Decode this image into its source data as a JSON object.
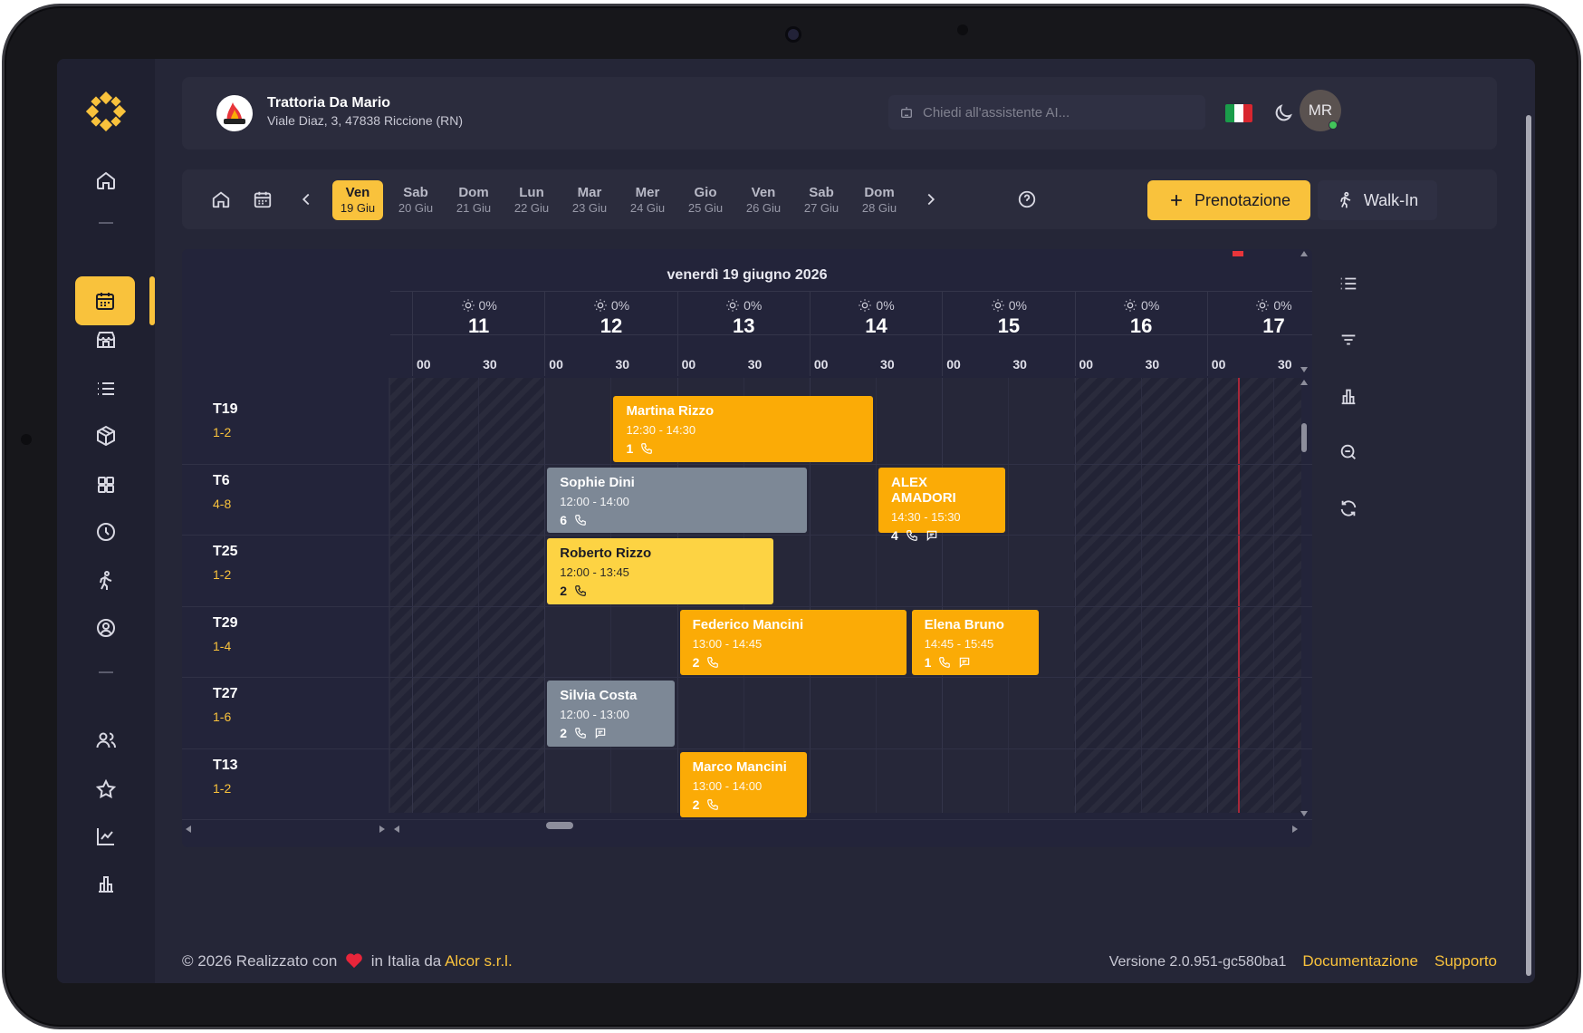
{
  "restaurant": {
    "name": "Trattoria Da Mario",
    "address": "Viale Diaz, 3, 47838 Riccione (RN)"
  },
  "header": {
    "ai_placeholder": "Chiedi all'assistente AI...",
    "avatar_initials": "MR",
    "flag_colors": [
      "#1a9c4a",
      "#ffffff",
      "#d8262f"
    ]
  },
  "days": [
    {
      "name": "Ven",
      "date": "19 Giu",
      "selected": true
    },
    {
      "name": "Sab",
      "date": "20 Giu"
    },
    {
      "name": "Dom",
      "date": "21 Giu"
    },
    {
      "name": "Lun",
      "date": "22 Giu"
    },
    {
      "name": "Mar",
      "date": "23 Giu"
    },
    {
      "name": "Mer",
      "date": "24 Giu"
    },
    {
      "name": "Gio",
      "date": "25 Giu"
    },
    {
      "name": "Ven",
      "date": "26 Giu"
    },
    {
      "name": "Sab",
      "date": "27 Giu"
    },
    {
      "name": "Dom",
      "date": "28 Giu"
    }
  ],
  "actions": {
    "new_booking": "Prenotazione",
    "walk_in": "Walk-In"
  },
  "grid": {
    "date_label": "venerdì 19 giugno 2026",
    "hours": [
      {
        "hour": "11",
        "weather": "0%"
      },
      {
        "hour": "12",
        "weather": "0%"
      },
      {
        "hour": "13",
        "weather": "0%"
      },
      {
        "hour": "14",
        "weather": "0%"
      },
      {
        "hour": "15",
        "weather": "0%"
      },
      {
        "hour": "16",
        "weather": "0%"
      },
      {
        "hour": "17",
        "weather": "0%"
      }
    ],
    "minute_labels": [
      "00",
      "30"
    ],
    "tables": [
      {
        "name": "T19",
        "capacity": "1-2"
      },
      {
        "name": "T6",
        "capacity": "4-8"
      },
      {
        "name": "T25",
        "capacity": "1-2"
      },
      {
        "name": "T29",
        "capacity": "1-4"
      },
      {
        "name": "T27",
        "capacity": "1-6"
      },
      {
        "name": "T13",
        "capacity": "1-2"
      }
    ],
    "bookings": [
      {
        "name": "Martina Rizzo",
        "time": "12:30 - 14:30",
        "people": "1",
        "row": 0,
        "start": 12.5,
        "end": 14.5,
        "color": "orange",
        "note": false
      },
      {
        "name": "Sophie Dini",
        "time": "12:00 - 14:00",
        "people": "6",
        "row": 1,
        "start": 12.0,
        "end": 14.0,
        "color": "grey",
        "note": false
      },
      {
        "name": "ALEX AMADORI",
        "time": "14:30 - 15:30",
        "people": "4",
        "row": 1,
        "start": 14.5,
        "end": 15.5,
        "color": "orange",
        "note": true
      },
      {
        "name": "Roberto Rizzo",
        "time": "12:00 - 13:45",
        "people": "2",
        "row": 2,
        "start": 12.0,
        "end": 13.75,
        "color": "yellow",
        "note": false
      },
      {
        "name": "Federico Mancini",
        "time": "13:00 - 14:45",
        "people": "2",
        "row": 3,
        "start": 13.0,
        "end": 14.75,
        "color": "orange",
        "note": false
      },
      {
        "name": "Elena Bruno",
        "time": "14:45 - 15:45",
        "people": "1",
        "row": 3,
        "start": 14.75,
        "end": 15.75,
        "color": "orange",
        "note": true
      },
      {
        "name": "Silvia Costa",
        "time": "12:00 - 13:00",
        "people": "2",
        "row": 4,
        "start": 12.0,
        "end": 13.0,
        "color": "grey",
        "note": true
      },
      {
        "name": "Marco Mancini",
        "time": "13:00 - 14:00",
        "people": "2",
        "row": 5,
        "start": 13.0,
        "end": 14.0,
        "color": "orange",
        "note": false
      }
    ]
  },
  "footer": {
    "copyright_pre": "© 2026 Realizzato con",
    "copyright_mid": "in Italia da",
    "company": "Alcor s.r.l.",
    "version": "Versione 2.0.951-gc580ba1",
    "docs": "Documentazione",
    "support": "Supporto"
  }
}
